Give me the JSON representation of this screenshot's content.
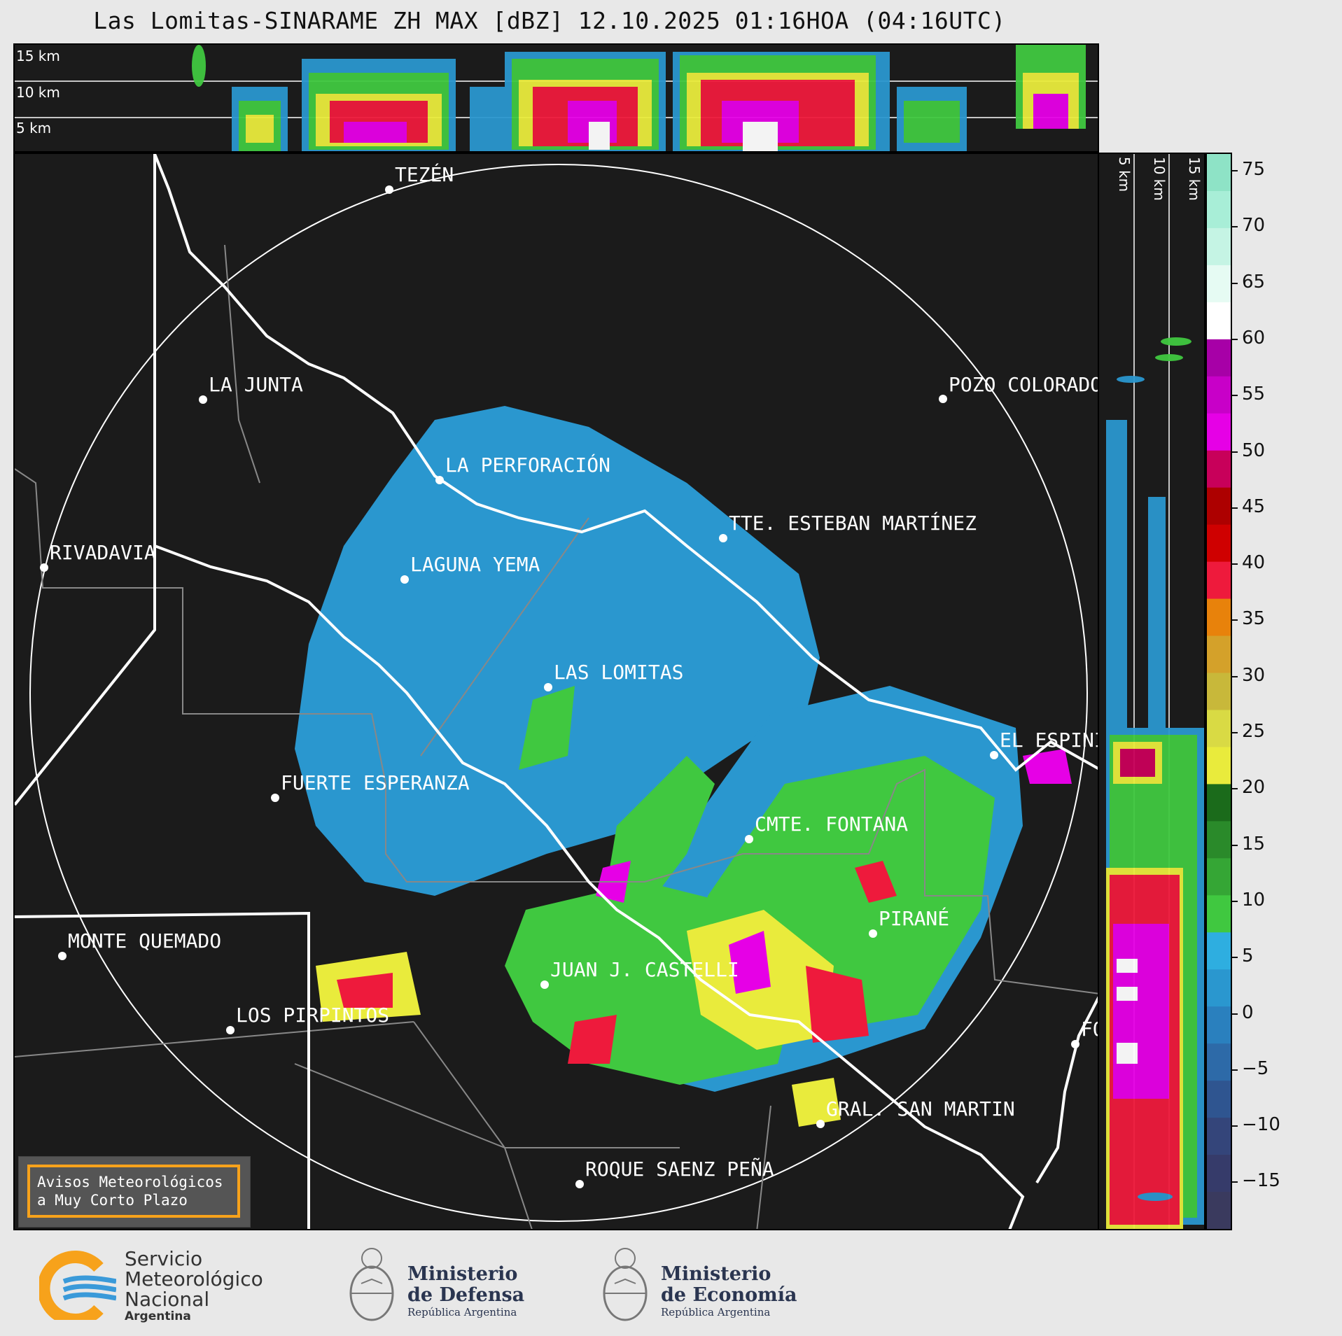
{
  "title": "Las Lomitas-SINARAME ZH MAX [dBZ] 12.10.2025 01:16HOA (04:16UTC)",
  "top_section_labels": [
    "15 km",
    "10 km",
    "5 km"
  ],
  "side_section_labels": [
    "5 km",
    "10 km",
    "15 km"
  ],
  "colorbar": {
    "unit": "dBZ",
    "ticks": [
      "75",
      "70",
      "65",
      "60",
      "55",
      "50",
      "45",
      "40",
      "35",
      "30",
      "25",
      "20",
      "15",
      "10",
      "5",
      "0",
      "−5",
      "−10",
      "−15"
    ],
    "colors": [
      "#8ee3c6",
      "#a8eed7",
      "#c5f4e4",
      "#e6fbf3",
      "#ffffff",
      "#a700a7",
      "#c800c8",
      "#e600e6",
      "#c8005a",
      "#ad0000",
      "#cf0000",
      "#ee1a3c",
      "#e8820b",
      "#d4a12a",
      "#c8b83a",
      "#d9da44",
      "#e9eb3c",
      "#1b6b1b",
      "#2a8a2a",
      "#35a635",
      "#40c840",
      "#2eaee0",
      "#2a97cf",
      "#2a80be",
      "#2d6aa8",
      "#2f5590",
      "#34457a",
      "#363b6a",
      "#3a3a5e"
    ]
  },
  "cities": [
    {
      "name": "TEZÉN"
    },
    {
      "name": "LA JUNTA"
    },
    {
      "name": "POZO COLORADO"
    },
    {
      "name": "LA PERFORACIÓN"
    },
    {
      "name": "RIVADAVIA"
    },
    {
      "name": "TTE. ESTEBAN MARTÍNEZ"
    },
    {
      "name": "LAGUNA YEMA"
    },
    {
      "name": "LAS LOMITAS"
    },
    {
      "name": "EL ESPINILLO"
    },
    {
      "name": "FUERTE ESPERANZA"
    },
    {
      "name": "CMTE. FONTANA"
    },
    {
      "name": "PIRANÉ"
    },
    {
      "name": "MONTE QUEMADO"
    },
    {
      "name": "JUAN J. CASTELLI"
    },
    {
      "name": "LOS PIRPINTOS"
    },
    {
      "name": "GRAL. SAN MARTIN"
    },
    {
      "name": "ROQUE SAENZ PEÑA"
    },
    {
      "name": "FORMOSA"
    }
  ],
  "avisos": {
    "line1": "Avisos Meteorológicos",
    "line2": "a Muy Corto Plazo"
  },
  "footer": {
    "smn": {
      "line1": "Servicio",
      "line2": "Meteorológico",
      "line3": "Nacional",
      "line4": "Argentina"
    },
    "defensa": {
      "line1": "Ministerio",
      "line2": "de Defensa",
      "line3": "República Argentina"
    },
    "economia": {
      "line1": "Ministerio",
      "line2": "de Economía",
      "line3": "República Argentina"
    }
  }
}
